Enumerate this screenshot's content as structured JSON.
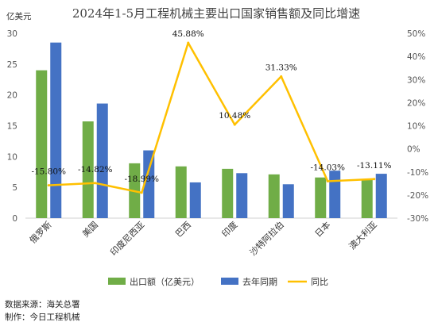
{
  "chart_data": {
    "type": "bar",
    "title": "2024年1-5月工程机械主要出口国家销售额及同比增速",
    "y_unit_label": "亿美元",
    "categories": [
      "俄罗斯",
      "美国",
      "印度尼西亚",
      "巴西",
      "印度",
      "沙特阿拉伯",
      "日本",
      "澳大利亚"
    ],
    "series": [
      {
        "name": "出口额（亿美元）",
        "type": "bar",
        "axis": "left",
        "color": "#70ad47",
        "values": [
          24.0,
          15.7,
          8.9,
          8.4,
          8.0,
          7.1,
          6.6,
          6.2
        ]
      },
      {
        "name": "去年同期",
        "type": "bar",
        "axis": "left",
        "color": "#4472c4",
        "values": [
          28.5,
          18.6,
          11.0,
          5.8,
          7.3,
          5.5,
          7.7,
          7.2
        ]
      },
      {
        "name": "同比",
        "type": "line",
        "axis": "right",
        "color": "#ffc000",
        "values": [
          -15.8,
          -14.82,
          -18.99,
          45.88,
          10.48,
          31.33,
          -14.03,
          -13.11
        ],
        "labels": [
          "-15.80%",
          "-14.82%",
          "-18.99%",
          "45.88%",
          "10.48%",
          "31.33%",
          "-14.03%",
          "-13.11%"
        ]
      }
    ],
    "ylim_left": [
      0,
      30
    ],
    "yticks_left": [
      "0",
      "5",
      "10",
      "15",
      "20",
      "25",
      "30"
    ],
    "ylim_right": [
      -30,
      50
    ],
    "yticks_right": [
      "-30%",
      "-20%",
      "-10%",
      "0%",
      "10%",
      "20%",
      "30%",
      "40%",
      "50%"
    ],
    "grid": false,
    "legend_position": "bottom"
  },
  "footer": {
    "source": "数据来源：海关总署",
    "producer": "制作：今日工程机械"
  }
}
